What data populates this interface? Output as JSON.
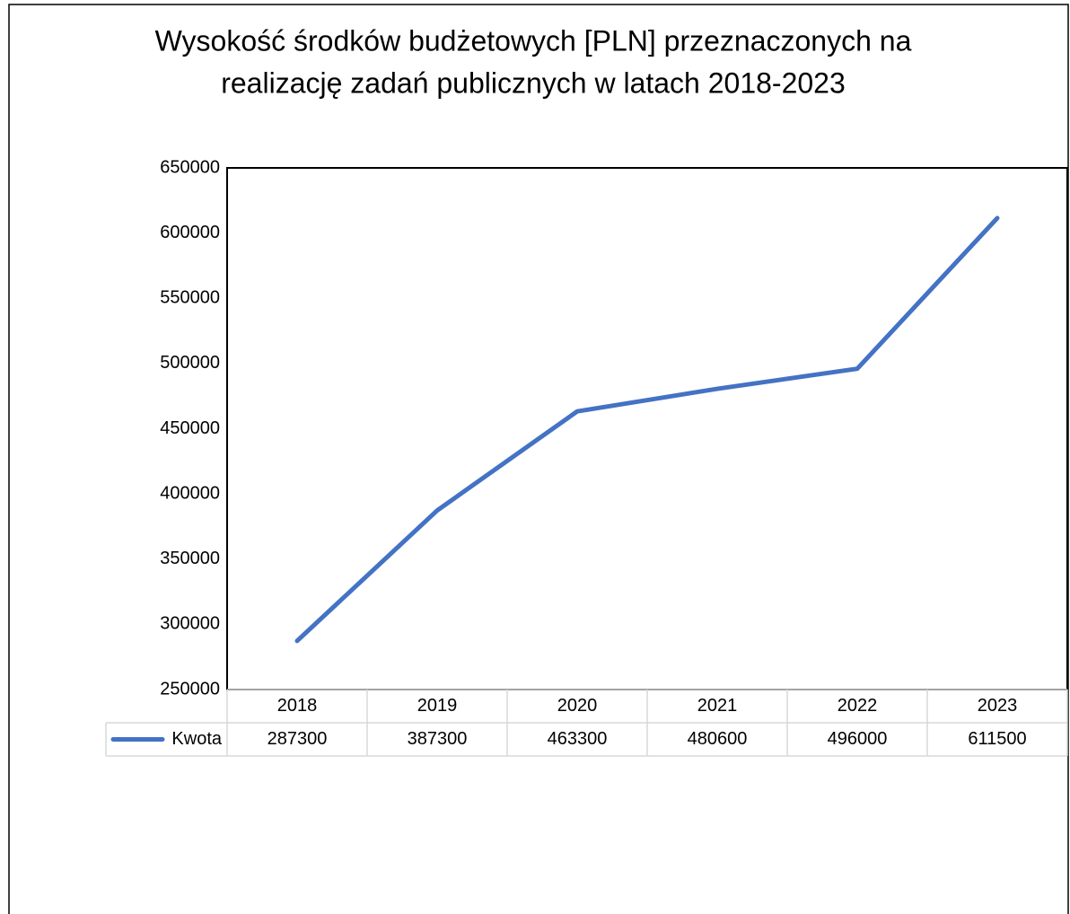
{
  "chart_data": {
    "type": "line",
    "title": [
      "Wysokość środków budżetowych [PLN] przeznaczonych na",
      "realizację zadań publicznych w latach 2018-2023"
    ],
    "categories": [
      "2018",
      "2019",
      "2020",
      "2021",
      "2022",
      "2023"
    ],
    "series": [
      {
        "name": "Kwota",
        "color": "#4472c4",
        "values": [
          287300,
          387300,
          463300,
          480600,
          496000,
          611500
        ]
      }
    ],
    "ylim": [
      250000,
      650000
    ],
    "yticks": [
      250000,
      300000,
      350000,
      400000,
      450000,
      500000,
      550000,
      600000,
      650000
    ],
    "grid": false
  }
}
